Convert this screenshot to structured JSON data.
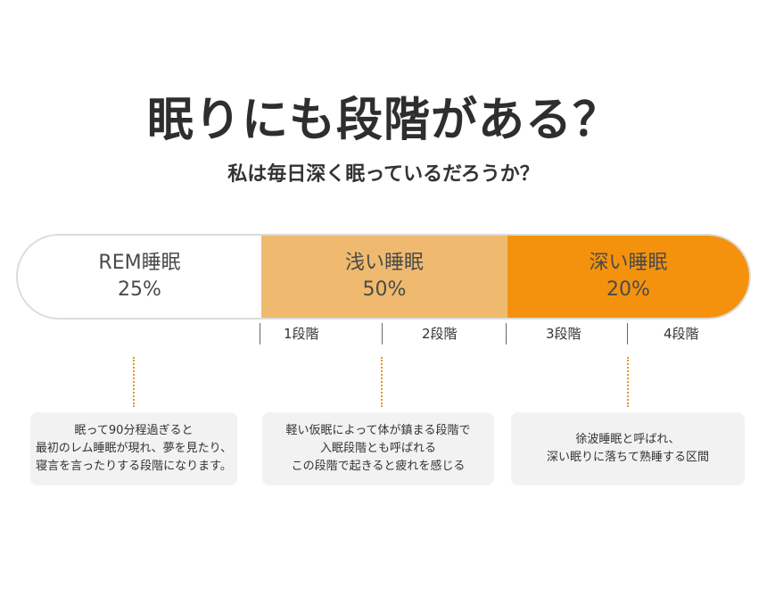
{
  "title": "眠りにも段階がある？",
  "subtitle": "私は毎日深く眠っているだろうか？",
  "colors": {
    "rem": "#ffffff",
    "light": "#efba6f",
    "deep": "#f5920d",
    "dotted": "#e8961f",
    "card_bg": "#f2f2f2"
  },
  "segments": [
    {
      "label": "REM睡眠",
      "percent": "25%"
    },
    {
      "label": "浅い睡眠",
      "percent": "50%"
    },
    {
      "label": "深い睡眠",
      "percent": "20%"
    }
  ],
  "stages": [
    "1段階",
    "2段階",
    "3段階",
    "4段階"
  ],
  "cards": [
    {
      "lines": [
        "眠って90分程過ぎると",
        "最初のレム睡眠が現れ、夢を見たり、",
        "寝言を言ったりする段階になります。"
      ]
    },
    {
      "lines": [
        "軽い仮眠によって体が鎮まる段階で",
        "入眠段階とも呼ばれる",
        "この段階で起きると疲れを感じる"
      ]
    },
    {
      "lines": [
        "徐波睡眠と呼ばれ、",
        "深い眠りに落ちて熟睡する区間"
      ]
    }
  ]
}
